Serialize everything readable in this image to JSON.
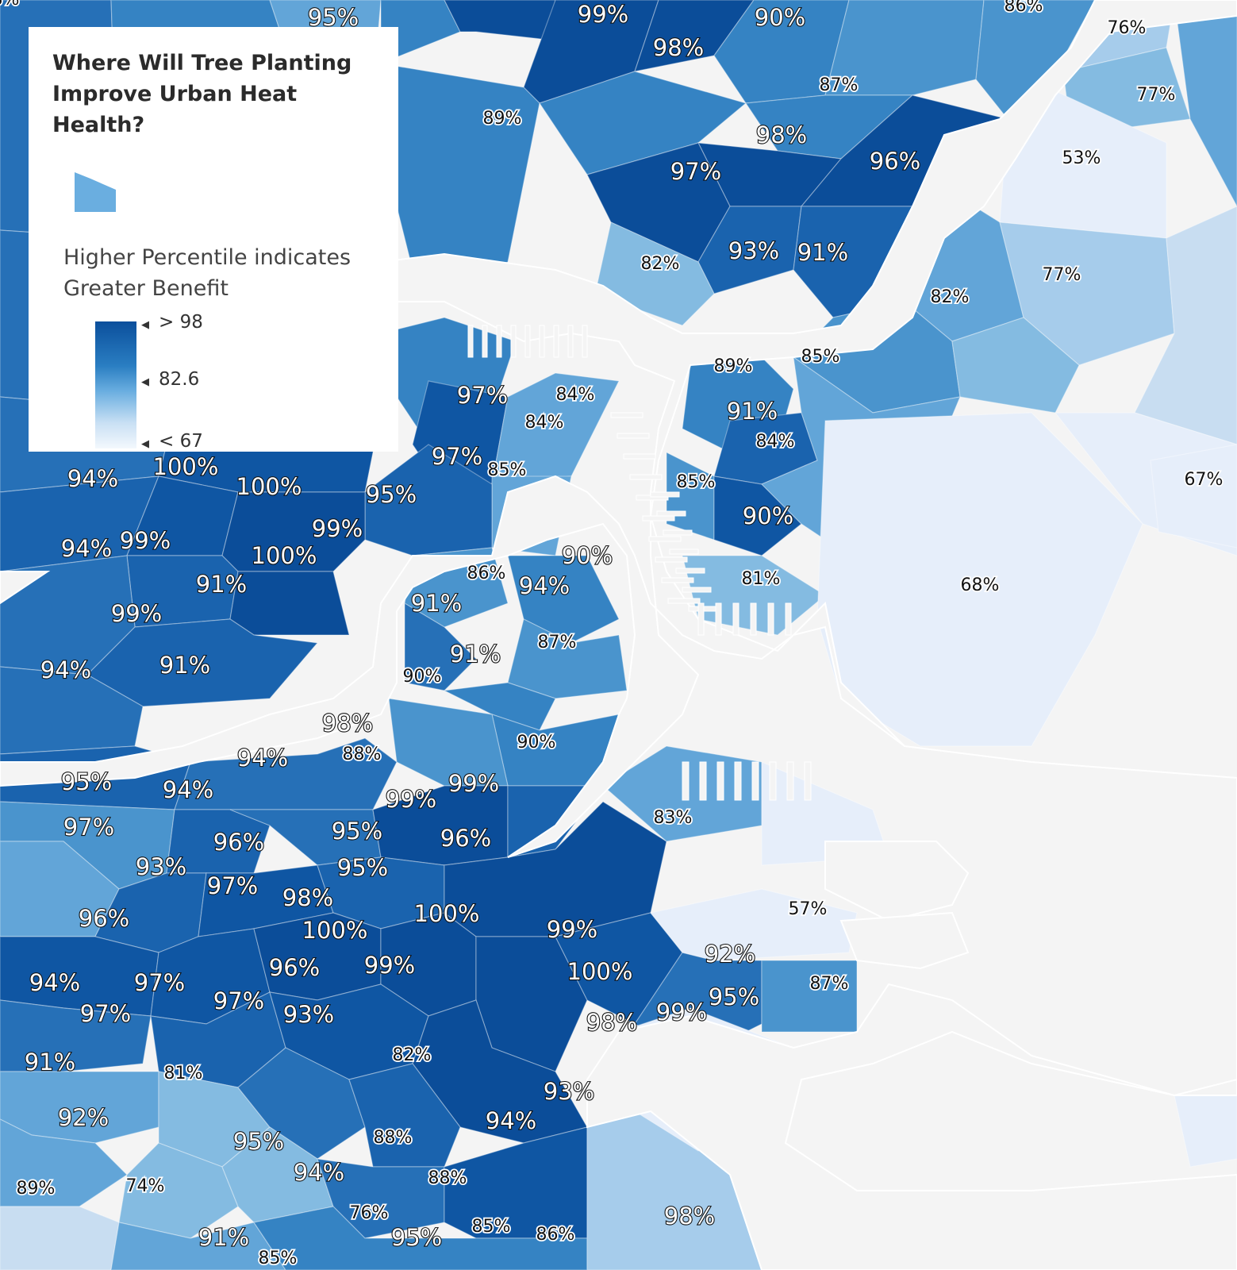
{
  "legend": {
    "title_line1": "Where Will Tree Planting",
    "title_line2": "Improve Urban Heat Health?",
    "subtitle_line1": "Higher Percentile indicates",
    "subtitle_line2": "Greater Benefit",
    "max_label": "> 98",
    "mid_label": "82.6",
    "min_label": "< 67"
  },
  "colors": {
    "c100": "#0b4d99",
    "c98": "#0f56a3",
    "c95": "#1a63ae",
    "c92": "#2670b7",
    "c89": "#3583c3",
    "c86": "#4a94cd",
    "c83": "#62a5d8",
    "c79": "#84bbe1",
    "c75": "#a6cceb",
    "c70": "#c8ddf1",
    "c60": "#e6eefa",
    "water": "#f4f4f4"
  },
  "labels": [
    {
      "text": "95%",
      "s": "big"
    },
    {
      "text": "99%",
      "s": "big"
    },
    {
      "text": "90%",
      "s": "big"
    },
    {
      "text": "86%",
      "s": "small"
    },
    {
      "text": "76%",
      "s": "small"
    },
    {
      "text": "98%",
      "s": "big"
    },
    {
      "text": "87%",
      "s": "small"
    },
    {
      "text": "77%",
      "s": "small"
    },
    {
      "text": "89%",
      "s": "small"
    },
    {
      "text": "98%",
      "s": "big"
    },
    {
      "text": "53%",
      "s": "small"
    },
    {
      "text": "96%",
      "s": "big"
    },
    {
      "text": "97%",
      "s": "big"
    },
    {
      "text": "93%",
      "s": "big"
    },
    {
      "text": "91%",
      "s": "big"
    },
    {
      "text": "82%",
      "s": "small"
    },
    {
      "text": "77%",
      "s": "small"
    },
    {
      "text": "82%",
      "s": "small"
    },
    {
      "text": "89%",
      "s": "small"
    },
    {
      "text": "85%",
      "s": "small"
    },
    {
      "text": "97%",
      "s": "big"
    },
    {
      "text": "84%",
      "s": "small"
    },
    {
      "text": "84%",
      "s": "small"
    },
    {
      "text": "91%",
      "s": "big"
    },
    {
      "text": "84%",
      "s": "small"
    },
    {
      "text": "97%",
      "s": "big"
    },
    {
      "text": "85%",
      "s": "small"
    },
    {
      "text": "85%",
      "s": "small"
    },
    {
      "text": "67%",
      "s": "small"
    },
    {
      "text": "94%",
      "s": "big"
    },
    {
      "text": "100%",
      "s": "big"
    },
    {
      "text": "100%",
      "s": "big"
    },
    {
      "text": "95%",
      "s": "big"
    },
    {
      "text": "99%",
      "s": "big"
    },
    {
      "text": "90%",
      "s": "big"
    },
    {
      "text": "94%",
      "s": "big"
    },
    {
      "text": "99%",
      "s": "big"
    },
    {
      "text": "100%",
      "s": "big"
    },
    {
      "text": "90%",
      "s": "big"
    },
    {
      "text": "86%",
      "s": "small"
    },
    {
      "text": "94%",
      "s": "big"
    },
    {
      "text": "81%",
      "s": "small"
    },
    {
      "text": "68%",
      "s": "small"
    },
    {
      "text": "91%",
      "s": "big"
    },
    {
      "text": "91%",
      "s": "big"
    },
    {
      "text": "99%",
      "s": "big"
    },
    {
      "text": "87%",
      "s": "small"
    },
    {
      "text": "94%",
      "s": "big"
    },
    {
      "text": "91%",
      "s": "big"
    },
    {
      "text": "91%",
      "s": "big"
    },
    {
      "text": "90%",
      "s": "small"
    },
    {
      "text": "98%",
      "s": "big"
    },
    {
      "text": "90%",
      "s": "small"
    },
    {
      "text": "94%",
      "s": "big"
    },
    {
      "text": "88%",
      "s": "small"
    },
    {
      "text": "95%",
      "s": "big"
    },
    {
      "text": "94%",
      "s": "big"
    },
    {
      "text": "99%",
      "s": "big"
    },
    {
      "text": "99%",
      "s": "big"
    },
    {
      "text": "97%",
      "s": "big"
    },
    {
      "text": "83%",
      "s": "small"
    },
    {
      "text": "96%",
      "s": "big"
    },
    {
      "text": "95%",
      "s": "big"
    },
    {
      "text": "96%",
      "s": "big"
    },
    {
      "text": "93%",
      "s": "big"
    },
    {
      "text": "95%",
      "s": "big"
    },
    {
      "text": "97%",
      "s": "big"
    },
    {
      "text": "98%",
      "s": "big"
    },
    {
      "text": "57%",
      "s": "small"
    },
    {
      "text": "96%",
      "s": "big"
    },
    {
      "text": "100%",
      "s": "big"
    },
    {
      "text": "100%",
      "s": "big"
    },
    {
      "text": "99%",
      "s": "big"
    },
    {
      "text": "92%",
      "s": "big"
    },
    {
      "text": "96%",
      "s": "big"
    },
    {
      "text": "99%",
      "s": "big"
    },
    {
      "text": "100%",
      "s": "big"
    },
    {
      "text": "94%",
      "s": "big"
    },
    {
      "text": "97%",
      "s": "big"
    },
    {
      "text": "87%",
      "s": "small"
    },
    {
      "text": "95%",
      "s": "big"
    },
    {
      "text": "97%",
      "s": "big"
    },
    {
      "text": "93%",
      "s": "big"
    },
    {
      "text": "98%",
      "s": "big"
    },
    {
      "text": "99%",
      "s": "big"
    },
    {
      "text": "91%",
      "s": "big"
    },
    {
      "text": "81%",
      "s": "small"
    },
    {
      "text": "82%",
      "s": "small"
    },
    {
      "text": "97%",
      "s": "big"
    },
    {
      "text": "93%",
      "s": "big"
    },
    {
      "text": "92%",
      "s": "big"
    },
    {
      "text": "94%",
      "s": "big"
    },
    {
      "text": "95%",
      "s": "big"
    },
    {
      "text": "88%",
      "s": "small"
    },
    {
      "text": "94%",
      "s": "big"
    },
    {
      "text": "89%",
      "s": "small"
    },
    {
      "text": "74%",
      "s": "small"
    },
    {
      "text": "88%",
      "s": "small"
    },
    {
      "text": "98%",
      "s": "big"
    },
    {
      "text": "76%",
      "s": "small"
    },
    {
      "text": "91%",
      "s": "big"
    },
    {
      "text": "85%",
      "s": "small"
    },
    {
      "text": "86%",
      "s": "small"
    },
    {
      "text": "95%",
      "s": "big"
    },
    {
      "text": "85%",
      "s": "small"
    },
    {
      "text": "88%",
      "s": "small"
    }
  ]
}
